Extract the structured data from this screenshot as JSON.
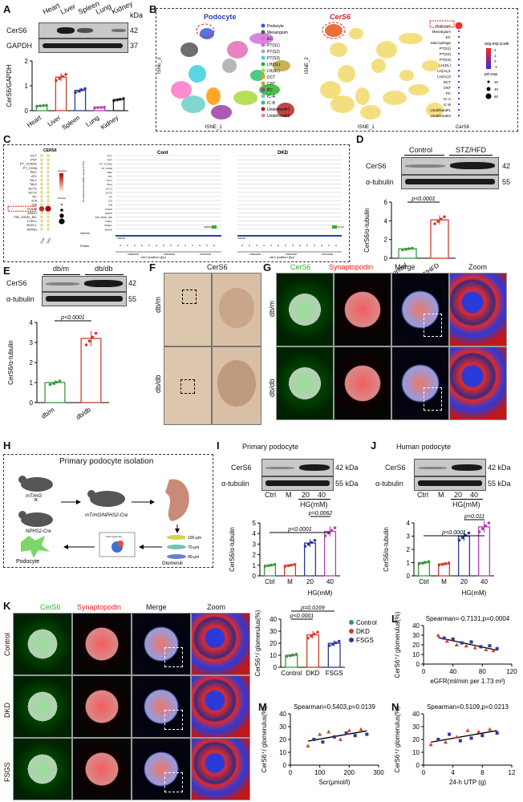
{
  "panels": {
    "A": {
      "letter": "A",
      "lanes": [
        "Heart",
        "Liver",
        "Spleen",
        "Lung",
        "Kidney"
      ],
      "kda": "kDa",
      "rows": [
        {
          "name": "CerS6",
          "kda": "42"
        },
        {
          "name": "GAPDH",
          "kda": "37"
        }
      ],
      "ylabel": "CerS6/GAPDH"
    },
    "B": {
      "letter": "B",
      "title1": "Podocyte",
      "title2": "CerS6",
      "axis_x": "tSNE_1",
      "axis_y": "tSNE_2",
      "clusters": [
        "Podocyte",
        "Mesangium",
        "EC",
        "PT(S1)",
        "PT(S2)",
        "PT(S3)",
        "LH(DL)",
        "LH(AL)",
        "DCT",
        "CNT",
        "PC",
        "IC-A",
        "IC-B",
        "Undefined#1",
        "Undefined#2"
      ],
      "dot_rows": [
        "Podocyte",
        "Mesangium",
        "EC",
        "Macrophage",
        "PT(S1)",
        "PT(S2)",
        "PT(S3)",
        "LH(DL)",
        "LH(AL)1",
        "LH(AL)2",
        "DCT",
        "CNT",
        "PC",
        "IC-A",
        "IC-B",
        "Undefined#1",
        "Undefined#2"
      ],
      "dot_x": "CerS6",
      "legend1": "avg.exp.scale",
      "legend2": "pct.exp",
      "legend1_ticks": [
        "2",
        "1",
        "0",
        "-1"
      ],
      "legend2_ticks": [
        "20",
        "40",
        "60"
      ]
    },
    "C": {
      "letter": "C",
      "gene": "CERS6",
      "cont": "Cont",
      "dkd": "DKD",
      "rows": [
        "PCT",
        "PST",
        "PT_VCAM1",
        "PT_CD36",
        "PEC",
        "ATL",
        "TAL1",
        "TAL2",
        "DCT1",
        "DCT2",
        "PC",
        "ICA",
        "ICB",
        "PODO",
        "ENDO",
        "FIB_VSMC_MC",
        "TCELL",
        "BCELL",
        "MONO"
      ],
      "xcats": [
        "Cont",
        "DKD"
      ],
      "track_ylabel": "Normalized accessibility (range 0-193)",
      "genes": "Genes",
      "peaks": "Peaks",
      "gene_name": "CERS6",
      "gene_as": "CERS6-AS",
      "xlabel": "chr2 position (bp)",
      "xticks": [
        "168500000",
        "168600000",
        "168700000"
      ],
      "leg1": "Avg.Exp",
      "leg2": "Pct.Exp"
    },
    "D": {
      "letter": "D",
      "groups": [
        "Control",
        "STZ/HFD"
      ],
      "rows": [
        {
          "name": "CerS6",
          "kda": "42"
        },
        {
          "name": "α-tubulin",
          "kda": "55"
        }
      ],
      "ylabel": "CerS6/α-tubulin",
      "pval": "p<0.0001"
    },
    "E": {
      "letter": "E",
      "groups": [
        "db/m",
        "db/db"
      ],
      "rows": [
        {
          "name": "CerS6",
          "kda": "42"
        },
        {
          "name": "α-tubulin",
          "kda": "55"
        }
      ],
      "ylabel": "CerS6/α-tubulin",
      "pval": "p<0.0001"
    },
    "F": {
      "letter": "F",
      "title": "CerS6",
      "rows": [
        "db/m",
        "db/db"
      ]
    },
    "G": {
      "letter": "G",
      "cols": [
        "CerS6",
        "Synaptopodin",
        "Merge",
        "Zoom"
      ],
      "rows": [
        "db/m",
        "db/db"
      ]
    },
    "H": {
      "letter": "H",
      "title": "Primary podocyte isolation",
      "m1": "mT/mG",
      "m2": "NPHS2-Cre",
      "m3": "mT/mG/NPHS2-Cre",
      "flow": "Flow cytometry",
      "sieves": [
        "100-μm",
        "70-μm",
        "40-μm"
      ],
      "podocyte": "Podocyte",
      "glomeruli": "Glomeruli"
    },
    "I": {
      "letter": "I",
      "title": "Primary podocyte",
      "lanes": [
        "Ctrl",
        "M",
        "20",
        "40"
      ],
      "hg": "HG(mM)",
      "rows": [
        {
          "name": "CerS6",
          "kda": "42 kDa"
        },
        {
          "name": "α-tubulin",
          "kda": "55 kDa"
        }
      ],
      "ylabel": "CerS6/α-tubulin",
      "p1": "p<0.0001",
      "p2": "p=0.0062"
    },
    "J": {
      "letter": "J",
      "title": "Human podocyte",
      "lanes": [
        "Ctrl",
        "M",
        "20",
        "40"
      ],
      "hg": "HG(mM)",
      "rows": [
        {
          "name": "CerS6",
          "kda": "42 kDa"
        },
        {
          "name": "α-tubulin",
          "kda": "55 kDa"
        }
      ],
      "ylabel": "CerS6/α-tubulin",
      "p1": "p<0.0001",
      "p2": "p=0.011"
    },
    "K": {
      "letter": "K",
      "cols": [
        "CerS6",
        "Synaptopodin",
        "Merge",
        "Zoom"
      ],
      "rows": [
        "Control",
        "DKD",
        "FSGS"
      ],
      "ylabel": "CerS6⁺/ glomerulus(%)",
      "groups": [
        "Control",
        "DKD",
        "FSGS"
      ],
      "legend": [
        "Control",
        "DKD",
        "FSGS"
      ],
      "p1": "p=0.0169",
      "p2": "p<0.0001"
    },
    "L": {
      "letter": "L",
      "stat": "Spearman=-0.7131,p=0.0004",
      "xlabel": "eGFR(ml/min per 1.73 m²)",
      "ylabel": "CerS6⁺/ glomerulus(%)"
    },
    "M": {
      "letter": "M",
      "stat": "Spearman=0.5403,p=0.0139",
      "xlabel": "Scr(μmol/l)",
      "ylabel": "CerS6⁺/ glomerulus(%)"
    },
    "N": {
      "letter": "N",
      "stat": "Spearman=0.5109,p=0.0213",
      "xlabel": "24-h UTP (g)",
      "ylabel": "CerS6⁺/ glomerulus(%)"
    }
  },
  "chart_data": [
    {
      "id": "A",
      "type": "bar",
      "categories": [
        "Heart",
        "Liver",
        "Spleen",
        "Lung",
        "Kidney"
      ],
      "values": [
        0.2,
        1.35,
        0.82,
        0.13,
        0.45
      ],
      "ylabel": "CerS6/GAPDH",
      "ylim": [
        0,
        2
      ],
      "yticks": [
        0,
        1,
        2
      ],
      "colors": [
        "#3a9a3a",
        "#d43d2a",
        "#2c3a9c",
        "#b640b6",
        "#222222"
      ]
    },
    {
      "id": "D",
      "type": "bar",
      "categories": [
        "Control",
        "STZ/HFD"
      ],
      "values": [
        1.0,
        4.1
      ],
      "ylabel": "CerS6/α-tubulin",
      "ylim": [
        0,
        6
      ],
      "yticks": [
        0,
        2,
        4,
        6
      ],
      "colors": [
        "#3a9a3a",
        "#d43d2a"
      ]
    },
    {
      "id": "E",
      "type": "bar",
      "categories": [
        "db/m",
        "db/db"
      ],
      "values": [
        1.0,
        3.2
      ],
      "ylabel": "CerS6/α-tubulin",
      "ylim": [
        0,
        4
      ],
      "yticks": [
        0,
        1,
        2,
        3,
        4
      ],
      "colors": [
        "#3a9a3a",
        "#d43d2a"
      ]
    },
    {
      "id": "I",
      "type": "bar",
      "categories": [
        "Ctrl",
        "M",
        "20",
        "40"
      ],
      "values": [
        1.0,
        1.0,
        3.1,
        4.2
      ],
      "ylabel": "CerS6/α-tubulin",
      "ylim": [
        0,
        5
      ],
      "yticks": [
        0,
        1,
        2,
        3,
        4,
        5
      ],
      "colors": [
        "#3a9a3a",
        "#d43d2a",
        "#2c3a9c",
        "#b640b6"
      ]
    },
    {
      "id": "J",
      "type": "bar",
      "categories": [
        "Ctrl",
        "M",
        "20",
        "40"
      ],
      "values": [
        1.0,
        0.9,
        3.0,
        3.7
      ],
      "ylabel": "CerS6/α-tubulin",
      "ylim": [
        0,
        4
      ],
      "yticks": [
        0,
        1,
        2,
        3,
        4
      ],
      "colors": [
        "#3a9a3a",
        "#d43d2a",
        "#2c3a9c",
        "#b640b6"
      ]
    },
    {
      "id": "K",
      "type": "bar",
      "categories": [
        "Control",
        "DKD",
        "FSGS"
      ],
      "values": [
        10,
        27,
        20
      ],
      "ylabel": "CerS6⁺/ glomerulus(%)",
      "ylim": [
        0,
        40
      ],
      "yticks": [
        0,
        10,
        20,
        30,
        40
      ],
      "colors": [
        "#3a9a3a",
        "#d43d2a",
        "#2c3a9c"
      ]
    },
    {
      "id": "L",
      "type": "scatter",
      "x": [
        20,
        28,
        32,
        40,
        45,
        52,
        58,
        65,
        70,
        78,
        85,
        90,
        95,
        100
      ],
      "y": [
        30,
        27,
        24,
        26,
        20,
        22,
        19,
        23,
        17,
        18,
        15,
        19,
        14,
        16
      ],
      "xticks": [
        0,
        40,
        80,
        120
      ],
      "ylim": [
        0,
        40
      ],
      "yticks": [
        0,
        10,
        20,
        30,
        40
      ],
      "xlabel": "eGFR(ml/min per 1.73 m²)"
    },
    {
      "id": "M",
      "type": "scatter",
      "x": [
        60,
        80,
        100,
        110,
        130,
        150,
        170,
        190,
        200,
        220,
        240,
        260
      ],
      "y": [
        15,
        20,
        24,
        18,
        26,
        22,
        20,
        25,
        27,
        23,
        28,
        24
      ],
      "xticks": [
        0,
        100,
        200,
        300
      ],
      "ylim": [
        0,
        40
      ],
      "yticks": [
        0,
        10,
        20,
        30,
        40
      ],
      "xlabel": "Scr(μmol/l)"
    },
    {
      "id": "N",
      "type": "scatter",
      "x": [
        1,
        2,
        3,
        3.5,
        4.5,
        5,
        6,
        6.5,
        7.5,
        8,
        9,
        10
      ],
      "y": [
        16,
        20,
        18,
        24,
        22,
        19,
        27,
        21,
        26,
        23,
        28,
        25
      ],
      "xticks": [
        0,
        4,
        8,
        12
      ],
      "ylim": [
        0,
        40
      ],
      "yticks": [
        0,
        10,
        20,
        30,
        40
      ],
      "xlabel": "24-h UTP (g)"
    }
  ]
}
